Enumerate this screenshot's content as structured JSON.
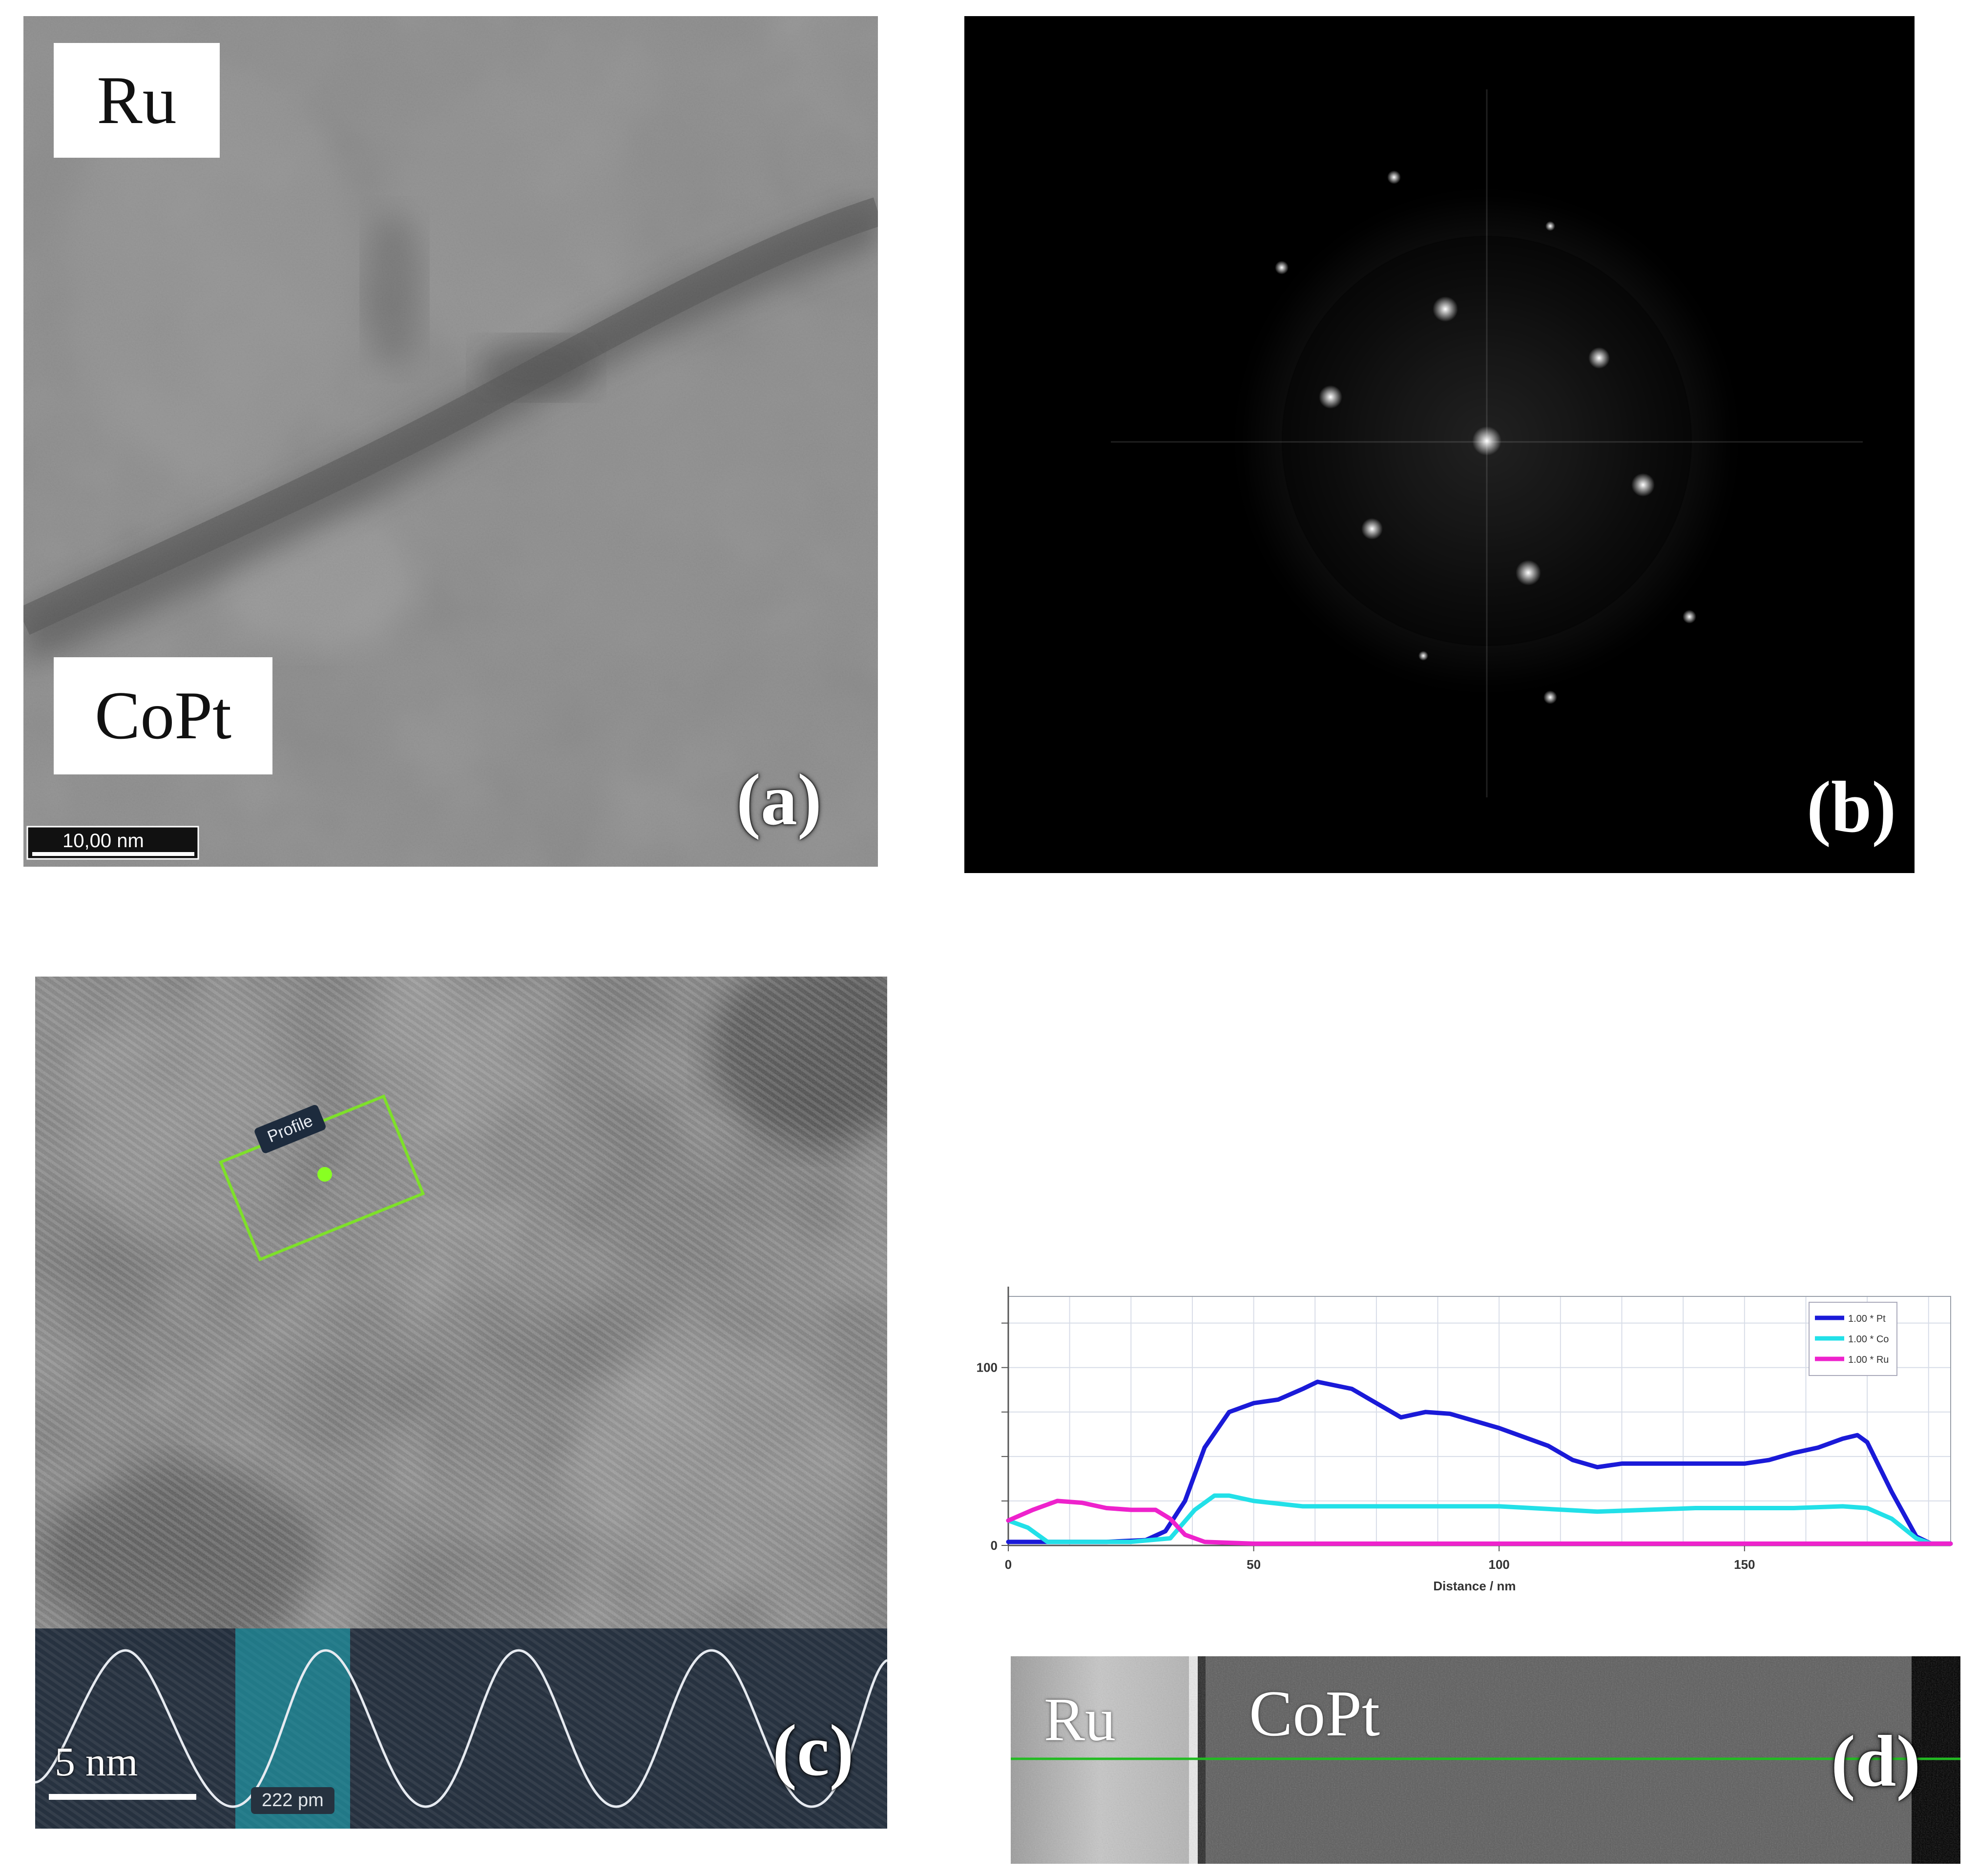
{
  "panel_a": {
    "label": "(a)",
    "top_material": "Ru",
    "bottom_material": "CoPt",
    "scale_bar": "10,00 nm"
  },
  "panel_b": {
    "label": "(b)"
  },
  "panel_c": {
    "label": "(c)",
    "profile_tag": "Profile",
    "scale_bar": "5 nm",
    "spacing_readout": "222 pm"
  },
  "panel_d": {
    "label": "(d)",
    "left_material": "Ru",
    "right_material": "CoPt"
  },
  "chart_data": {
    "type": "line",
    "xlabel": "Distance / nm",
    "ylabel": "",
    "xlim": [
      0,
      192
    ],
    "ylim": [
      0,
      140
    ],
    "x_ticks": [
      0,
      50,
      100,
      150
    ],
    "y_ticks": [
      0,
      100
    ],
    "grid": true,
    "legend_position": "top-right",
    "series": [
      {
        "name": "1.00 * Pt",
        "color": "#1a1ad8",
        "x": [
          0,
          10,
          20,
          28,
          32,
          36,
          40,
          45,
          50,
          55,
          60,
          63,
          70,
          75,
          80,
          85,
          90,
          100,
          110,
          115,
          120,
          125,
          130,
          140,
          150,
          155,
          160,
          165,
          170,
          173,
          175,
          180,
          185,
          188,
          192
        ],
        "y": [
          2,
          2,
          2,
          3,
          8,
          25,
          55,
          75,
          80,
          82,
          88,
          92,
          88,
          80,
          72,
          75,
          74,
          66,
          56,
          48,
          44,
          46,
          46,
          46,
          46,
          48,
          52,
          55,
          60,
          62,
          58,
          30,
          5,
          1,
          1
        ]
      },
      {
        "name": "1.00 * Co",
        "color": "#22e0e8",
        "x": [
          0,
          4,
          8,
          15,
          25,
          33,
          38,
          42,
          45,
          50,
          60,
          80,
          100,
          120,
          140,
          160,
          170,
          175,
          180,
          185,
          188,
          192
        ],
        "y": [
          14,
          10,
          2,
          2,
          2,
          4,
          20,
          28,
          28,
          25,
          22,
          22,
          22,
          19,
          21,
          21,
          22,
          21,
          15,
          4,
          1,
          1
        ]
      },
      {
        "name": "1.00 * Ru",
        "color": "#ee22cc",
        "x": [
          0,
          5,
          10,
          15,
          20,
          25,
          30,
          33,
          36,
          40,
          50,
          100,
          150,
          192
        ],
        "y": [
          14,
          20,
          25,
          24,
          21,
          20,
          20,
          15,
          6,
          2,
          1,
          1,
          1,
          1
        ]
      }
    ]
  }
}
